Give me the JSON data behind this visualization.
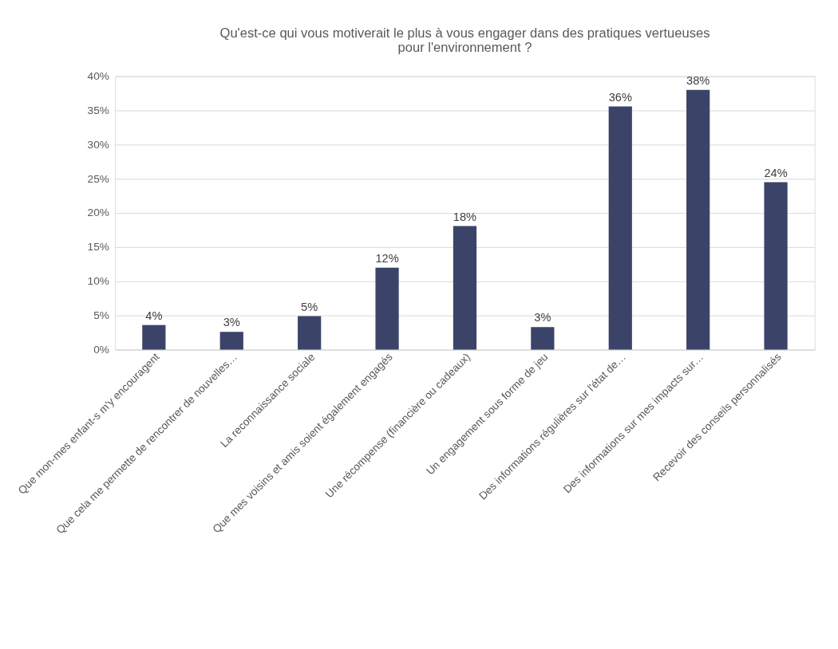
{
  "chart_data": {
    "type": "bar",
    "title": [
      "Qu'est-ce qui vous motiverait le plus à vous engager dans des pratiques vertueuses",
      "pour l'environnement ?"
    ],
    "categories": [
      "Que mon-mes enfant-s m'y encouragent",
      "Que cela me permette de rencontrer de nouvelles…",
      "La reconnaissance sociale",
      "Que mes voisins et amis soient également engagés",
      "Une récompense (financière ou cadeaux)",
      "Un engagement sous forme de jeu",
      "Des informations régulières sur l'état de…",
      "Des informations sur mes impacts sur…",
      "Recevoir des conseils personnalisés"
    ],
    "values": [
      3.6,
      2.6,
      4.9,
      12,
      18.1,
      3.3,
      35.6,
      38,
      24.5
    ],
    "value_labels": [
      "4%",
      "3%",
      "5%",
      "12%",
      "18%",
      "3%",
      "36%",
      "38%",
      "24%"
    ],
    "color": "#3b4468",
    "ylim": [
      0,
      40
    ],
    "yticks": [
      {
        "value": 0,
        "label": "0%"
      },
      {
        "value": 5,
        "label": "5%"
      },
      {
        "value": 10,
        "label": "10%"
      },
      {
        "value": 15,
        "label": "15%"
      },
      {
        "value": 20,
        "label": "20%"
      },
      {
        "value": 25,
        "label": "25%"
      },
      {
        "value": 30,
        "label": "30%"
      },
      {
        "value": 35,
        "label": "35%"
      },
      {
        "value": 40,
        "label": "40%"
      }
    ],
    "grid": "y"
  }
}
